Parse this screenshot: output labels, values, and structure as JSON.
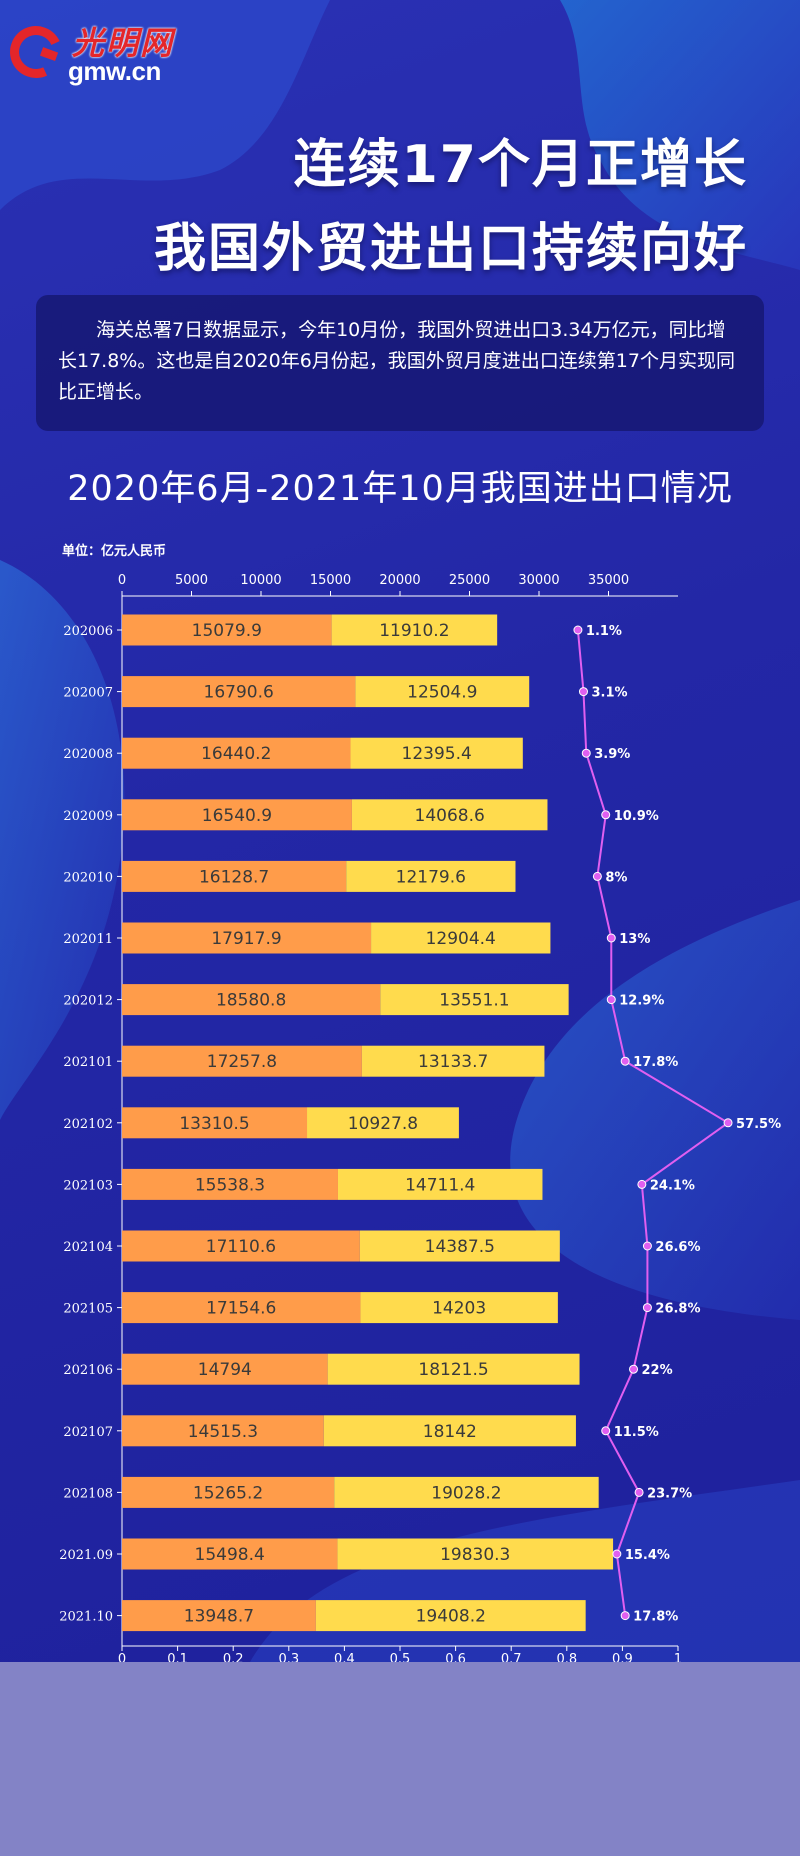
{
  "logo": {
    "name_cn": "光明网",
    "domain": "gmw.cn",
    "letter": "G"
  },
  "titles": [
    "连续17个月正增长",
    "我国外贸进出口持续向好"
  ],
  "intro": "海关总署7日数据显示，今年10月份，我国外贸进出口3.34万亿元，同比增长17.8%。这也是自2020年6月份起，我国外贸月度进出口连续第17个月实现同比正增长。",
  "chart_data": {
    "type": "bar",
    "orientation": "horizontal",
    "stacked": true,
    "title": "2020年6月-2021年10月我国进出口情况",
    "unit_label": "单位：亿元人民币",
    "categories": [
      "202006",
      "202007",
      "202008",
      "202009",
      "202010",
      "202011",
      "202012",
      "202101",
      "202102",
      "202103",
      "202104",
      "202105",
      "202106",
      "202107",
      "202108",
      "2021.09",
      "2021.10"
    ],
    "series": [
      {
        "name": "series-1",
        "kind": "bar",
        "color": "#ff9c4a",
        "values": [
          15079.9,
          16790.6,
          16440.2,
          16540.9,
          16128.7,
          17917.9,
          18580.8,
          17257.8,
          13310.5,
          15538.3,
          17110.6,
          17154.6,
          14794,
          14515.3,
          15265.2,
          15498.4,
          13948.7
        ],
        "labels": [
          "15079.9",
          "16790.6",
          "16440.2",
          "16540.9",
          "16128.7",
          "17917.9",
          "18580.8",
          "17257.8",
          "13310.5",
          "15538.3",
          "17110.6",
          "17154.6",
          "14794",
          "14515.3",
          "15265.2",
          "15498.4",
          "13948.7"
        ]
      },
      {
        "name": "series-2",
        "kind": "bar",
        "color": "#ffdb4d",
        "values": [
          11910.2,
          12504.9,
          12395.4,
          14068.6,
          12179.6,
          12904.4,
          13551.1,
          13133.7,
          10927.8,
          14711.4,
          14387.5,
          14203,
          18121.5,
          18142,
          19028.2,
          19830.3,
          19408.2
        ],
        "labels": [
          "11910.2",
          "12504.9",
          "12395.4",
          "14068.6",
          "12179.6",
          "12904.4",
          "13551.1",
          "13133.7",
          "10927.8",
          "14711.4",
          "14387.5",
          "14203",
          "18121.5",
          "18142",
          "19028.2",
          "19830.3",
          "19408.2"
        ]
      },
      {
        "name": "growth-rate",
        "kind": "line",
        "color": "#e05ff0",
        "values": [
          0.011,
          0.031,
          0.039,
          0.109,
          0.08,
          0.13,
          0.129,
          0.178,
          0.575,
          0.241,
          0.266,
          0.268,
          0.22,
          0.115,
          0.237,
          0.154,
          0.178
        ],
        "labels": [
          "1.1%",
          "3.1%",
          "3.9%",
          "10.9%",
          "8%",
          "13%",
          "12.9%",
          "17.8%",
          "57.5%",
          "24.1%",
          "26.6%",
          "26.8%",
          "22%",
          "11.5%",
          "23.7%",
          "15.4%",
          "17.8%"
        ],
        "x_in_bottom_axis": [
          0.82,
          0.83,
          0.835,
          0.87,
          0.855,
          0.88,
          0.88,
          0.905,
          1.09,
          0.935,
          0.945,
          0.945,
          0.92,
          0.87,
          0.93,
          0.89,
          0.905
        ]
      }
    ],
    "top_axis": {
      "range": [
        0,
        40000
      ],
      "ticks": [
        0,
        5000,
        10000,
        15000,
        20000,
        25000,
        30000,
        35000
      ],
      "tick_labels": [
        "0",
        "5000",
        "10000",
        "15000",
        "20000",
        "25000",
        "30000",
        "35000"
      ]
    },
    "bottom_axis": {
      "range": [
        0,
        1
      ],
      "ticks": [
        0,
        0.1,
        0.2,
        0.3,
        0.4,
        0.5,
        0.6,
        0.7,
        0.8,
        0.9,
        1
      ],
      "tick_labels": [
        "0",
        "0.1",
        "0.2",
        "0.3",
        "0.4",
        "0.5",
        "0.6",
        "0.7",
        "0.8",
        "0.9",
        "1"
      ]
    },
    "grid": false
  }
}
